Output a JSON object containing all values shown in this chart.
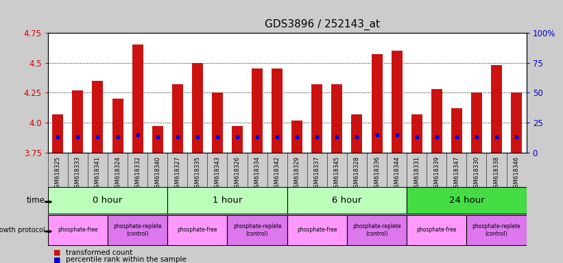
{
  "title": "GDS3896 / 252143_at",
  "samples": [
    "GSM618325",
    "GSM618333",
    "GSM618341",
    "GSM618324",
    "GSM618332",
    "GSM618340",
    "GSM618327",
    "GSM618335",
    "GSM618343",
    "GSM618326",
    "GSM618334",
    "GSM618342",
    "GSM618329",
    "GSM618337",
    "GSM618345",
    "GSM618328",
    "GSM618336",
    "GSM618344",
    "GSM618331",
    "GSM618339",
    "GSM618347",
    "GSM618330",
    "GSM618338",
    "GSM618346"
  ],
  "red_values": [
    4.07,
    4.27,
    4.35,
    4.2,
    4.65,
    3.97,
    4.32,
    4.5,
    4.25,
    3.97,
    4.45,
    4.45,
    4.02,
    4.32,
    4.32,
    4.07,
    4.57,
    4.6,
    4.07,
    4.28,
    4.12,
    4.25,
    4.48,
    4.25
  ],
  "blue_pct": [
    13,
    13,
    13,
    13,
    15,
    13,
    13,
    13,
    13,
    13,
    13,
    13,
    13,
    13,
    13,
    13,
    15,
    15,
    13,
    13,
    13,
    13,
    13,
    13
  ],
  "ymin": 3.75,
  "ymax": 4.75,
  "yticks_left": [
    3.75,
    4.0,
    4.25,
    4.5,
    4.75
  ],
  "yticks_right": [
    0,
    25,
    50,
    75,
    100
  ],
  "grid_values": [
    4.0,
    4.25,
    4.5
  ],
  "time_groups": [
    {
      "label": "0 hour",
      "start": 0,
      "end": 6,
      "color": "#bbffbb"
    },
    {
      "label": "1 hour",
      "start": 6,
      "end": 12,
      "color": "#bbffbb"
    },
    {
      "label": "6 hour",
      "start": 12,
      "end": 18,
      "color": "#bbffbb"
    },
    {
      "label": "24 hour",
      "start": 18,
      "end": 24,
      "color": "#44dd44"
    }
  ],
  "protocol_groups": [
    {
      "label": "phosphate-free",
      "start": 0,
      "end": 3,
      "color": "#ff99ff"
    },
    {
      "label": "phosphate-replete\n(control)",
      "start": 3,
      "end": 6,
      "color": "#dd77ee"
    },
    {
      "label": "phosphate-free",
      "start": 6,
      "end": 9,
      "color": "#ff99ff"
    },
    {
      "label": "phosphate-replete\n(control)",
      "start": 9,
      "end": 12,
      "color": "#dd77ee"
    },
    {
      "label": "phosphate-free",
      "start": 12,
      "end": 15,
      "color": "#ff99ff"
    },
    {
      "label": "phosphate-replete\n(control)",
      "start": 15,
      "end": 18,
      "color": "#dd77ee"
    },
    {
      "label": "phosphate-free",
      "start": 18,
      "end": 21,
      "color": "#ff99ff"
    },
    {
      "label": "phosphate-replete\n(control)",
      "start": 21,
      "end": 24,
      "color": "#dd77ee"
    }
  ],
  "bar_color": "#cc1111",
  "dot_color": "#0000cc",
  "bg_color": "#cccccc",
  "plot_bg": "#ffffff",
  "xticklabel_bg": "#cccccc",
  "title_fontsize": 11,
  "left_color": "#cc0000",
  "right_color": "#0000cc",
  "bar_width": 0.55
}
